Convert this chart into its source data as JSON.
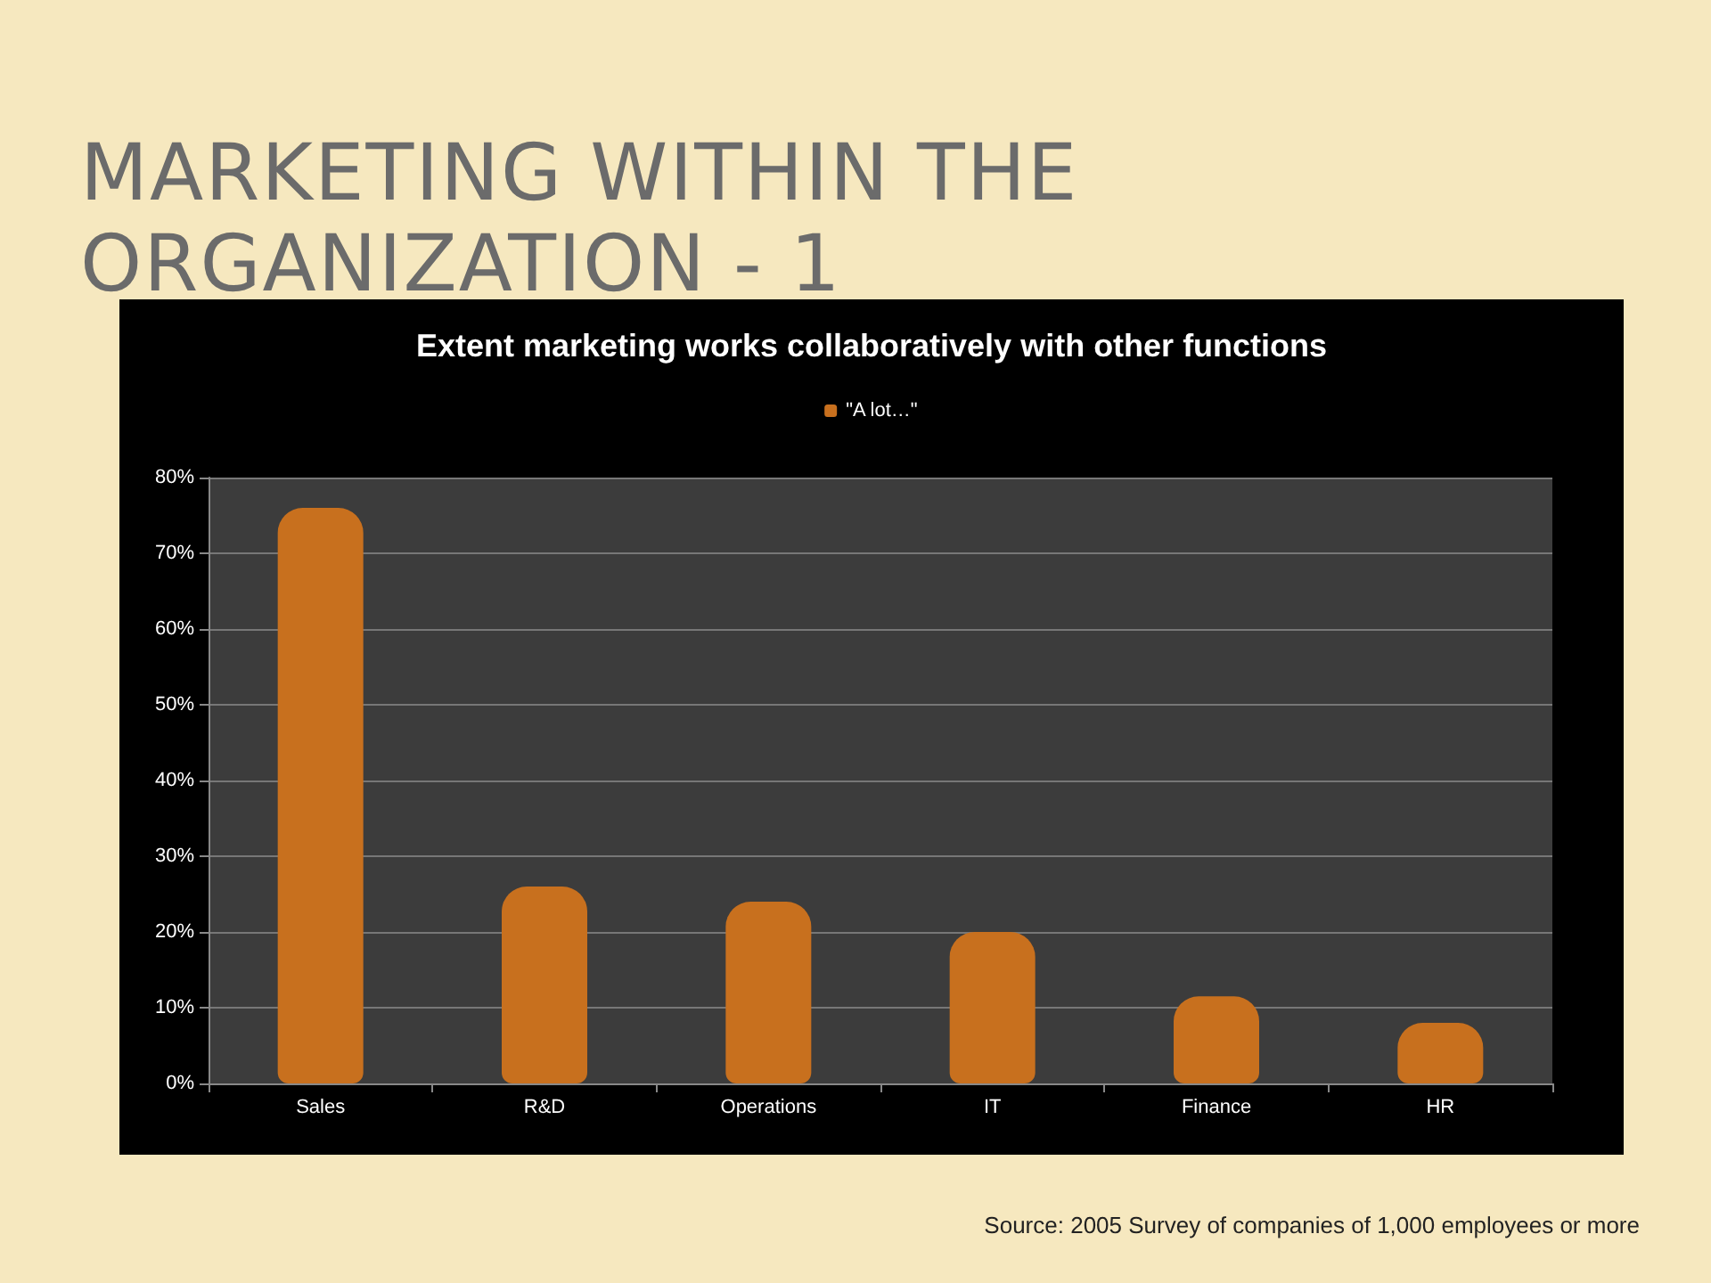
{
  "chart_data": {
    "type": "bar",
    "title": "MARKETING WITHIN THE ORGANIZATION - 1",
    "subtitle": "Extent marketing works collaboratively with other functions",
    "categories": [
      "Sales",
      "R&D",
      "Operations",
      "IT",
      "Finance",
      "HR"
    ],
    "series": [
      {
        "name": "\"A lot…\"",
        "color": "#c8701e",
        "values": [
          76,
          26,
          24,
          20,
          11.5,
          8
        ]
      }
    ],
    "ylim": [
      0,
      80
    ],
    "yticks": [
      {
        "value": 0,
        "label": "0%"
      },
      {
        "value": 10,
        "label": "10%"
      },
      {
        "value": 20,
        "label": "20%"
      },
      {
        "value": 30,
        "label": "30%"
      },
      {
        "value": 40,
        "label": "40%"
      },
      {
        "value": 50,
        "label": "50%"
      },
      {
        "value": 60,
        "label": "60%"
      },
      {
        "value": 70,
        "label": "70%"
      },
      {
        "value": 80,
        "label": "80%"
      }
    ],
    "grid": "y",
    "legend": "top",
    "annotations": [
      "Source: 2005 Survey of companies of 1,000 employees or more"
    ]
  }
}
